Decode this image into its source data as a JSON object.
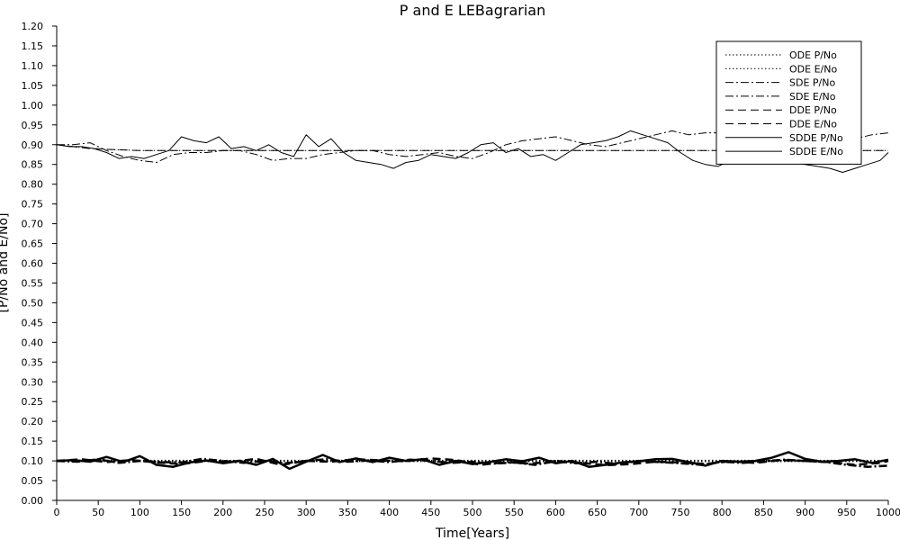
{
  "chart_data": {
    "type": "line",
    "title": "P and E LEBagrarian",
    "xlabel": "Time[Years]",
    "ylabel": "[P/No and E/No]",
    "xlim": [
      0,
      1000
    ],
    "ylim": [
      0,
      1.2
    ],
    "xticks": [
      "0",
      "50",
      "100",
      "150",
      "200",
      "250",
      "300",
      "350",
      "400",
      "450",
      "500",
      "550",
      "600",
      "650",
      "700",
      "750",
      "800",
      "850",
      "900",
      "950",
      "1000"
    ],
    "yticks": [
      "0.00",
      "0.05",
      "0.10",
      "0.15",
      "0.20",
      "0.25",
      "0.30",
      "0.35",
      "0.40",
      "0.45",
      "0.50",
      "0.55",
      "0.60",
      "0.65",
      "0.70",
      "0.75",
      "0.80",
      "0.85",
      "0.90",
      "0.95",
      "1.00",
      "1.05",
      "1.10",
      "1.15",
      "1.20"
    ],
    "grid": false,
    "legend_position": "top-right",
    "legend": [
      "ODE P/No",
      "ODE E/No",
      "SDE P/No",
      "SDE E/No",
      "DDE P/No",
      "DDE E/No",
      "SDDE P/No",
      "SDDE E/No"
    ],
    "series": [
      {
        "name": "ODE P/No",
        "style": "dotted",
        "width": 1,
        "x": [
          0,
          30,
          60,
          100,
          1000
        ],
        "y": [
          0.9,
          0.893,
          0.888,
          0.885,
          0.885
        ]
      },
      {
        "name": "ODE E/No",
        "style": "dotted",
        "width": 2.5,
        "x": [
          0,
          20,
          50,
          100,
          1000
        ],
        "y": [
          0.1,
          0.1,
          0.1,
          0.1,
          0.1
        ]
      },
      {
        "name": "SDE P/No",
        "style": "dashdot",
        "width": 1,
        "x": [
          0,
          20,
          40,
          60,
          80,
          100,
          120,
          140,
          160,
          180,
          200,
          220,
          240,
          260,
          280,
          300,
          320,
          340,
          360,
          380,
          400,
          420,
          440,
          460,
          480,
          500,
          520,
          540,
          560,
          580,
          600,
          620,
          640,
          660,
          680,
          700,
          720,
          740,
          760,
          780,
          800,
          820,
          840,
          860,
          880,
          900,
          920,
          940,
          960,
          980,
          1000
        ],
        "y": [
          0.9,
          0.9,
          0.905,
          0.885,
          0.87,
          0.86,
          0.855,
          0.875,
          0.88,
          0.88,
          0.885,
          0.885,
          0.875,
          0.86,
          0.865,
          0.865,
          0.875,
          0.88,
          0.885,
          0.885,
          0.875,
          0.87,
          0.875,
          0.88,
          0.87,
          0.865,
          0.88,
          0.9,
          0.91,
          0.915,
          0.92,
          0.91,
          0.9,
          0.895,
          0.905,
          0.915,
          0.925,
          0.935,
          0.925,
          0.93,
          0.93,
          0.92,
          0.915,
          0.92,
          0.91,
          0.905,
          0.905,
          0.91,
          0.915,
          0.925,
          0.93
        ]
      },
      {
        "name": "SDE E/No",
        "style": "dashdot",
        "width": 2.5,
        "x": [
          0,
          25,
          50,
          75,
          100,
          125,
          150,
          175,
          200,
          225,
          250,
          275,
          300,
          325,
          350,
          375,
          400,
          425,
          450,
          475,
          500,
          525,
          550,
          575,
          600,
          625,
          650,
          675,
          700,
          725,
          750,
          775,
          800,
          825,
          850,
          875,
          900,
          925,
          950,
          975,
          1000
        ],
        "y": [
          0.1,
          0.098,
          0.104,
          0.095,
          0.1,
          0.097,
          0.096,
          0.105,
          0.1,
          0.095,
          0.1,
          0.094,
          0.1,
          0.104,
          0.098,
          0.101,
          0.097,
          0.103,
          0.1,
          0.095,
          0.098,
          0.093,
          0.096,
          0.09,
          0.099,
          0.094,
          0.098,
          0.092,
          0.1,
          0.097,
          0.094,
          0.09,
          0.098,
          0.095,
          0.099,
          0.103,
          0.1,
          0.097,
          0.09,
          0.085,
          0.088
        ]
      },
      {
        "name": "DDE P/No",
        "style": "dashed",
        "width": 1,
        "x": [
          0,
          40,
          100,
          1000
        ],
        "y": [
          0.9,
          0.89,
          0.885,
          0.885
        ]
      },
      {
        "name": "DDE E/No",
        "style": "dashed",
        "width": 2.5,
        "x": [
          0,
          30,
          60,
          90,
          120,
          150,
          180,
          210,
          240,
          270,
          300,
          330,
          360,
          390,
          420,
          450,
          480,
          510,
          540,
          570,
          600,
          630,
          660,
          690,
          720,
          750,
          780,
          810,
          840,
          870,
          900,
          930,
          960,
          990,
          1000
        ],
        "y": [
          0.1,
          0.104,
          0.097,
          0.102,
          0.096,
          0.092,
          0.1,
          0.098,
          0.105,
          0.09,
          0.1,
          0.098,
          0.104,
          0.101,
          0.099,
          0.106,
          0.102,
          0.09,
          0.097,
          0.093,
          0.1,
          0.095,
          0.089,
          0.092,
          0.098,
          0.096,
          0.092,
          0.099,
          0.095,
          0.102,
          0.1,
          0.097,
          0.09,
          0.095,
          0.1
        ]
      },
      {
        "name": "SDDE P/No",
        "style": "solid",
        "width": 1,
        "x": [
          0,
          15,
          30,
          45,
          60,
          75,
          90,
          105,
          120,
          135,
          150,
          165,
          180,
          195,
          210,
          225,
          240,
          255,
          270,
          285,
          300,
          315,
          330,
          345,
          360,
          375,
          390,
          405,
          420,
          435,
          450,
          465,
          480,
          495,
          510,
          525,
          540,
          555,
          570,
          585,
          600,
          615,
          630,
          645,
          660,
          675,
          690,
          705,
          720,
          735,
          750,
          765,
          780,
          795,
          810,
          825,
          840,
          855,
          870,
          885,
          900,
          915,
          930,
          945,
          960,
          975,
          990,
          1000
        ],
        "y": [
          0.9,
          0.895,
          0.895,
          0.89,
          0.88,
          0.865,
          0.87,
          0.865,
          0.875,
          0.885,
          0.92,
          0.91,
          0.905,
          0.92,
          0.89,
          0.895,
          0.885,
          0.9,
          0.88,
          0.87,
          0.925,
          0.895,
          0.915,
          0.88,
          0.86,
          0.855,
          0.85,
          0.84,
          0.855,
          0.86,
          0.875,
          0.87,
          0.865,
          0.88,
          0.9,
          0.905,
          0.88,
          0.89,
          0.87,
          0.875,
          0.86,
          0.88,
          0.9,
          0.905,
          0.91,
          0.92,
          0.935,
          0.925,
          0.915,
          0.905,
          0.88,
          0.86,
          0.85,
          0.845,
          0.86,
          0.875,
          0.87,
          0.86,
          0.86,
          0.855,
          0.85,
          0.845,
          0.84,
          0.83,
          0.84,
          0.85,
          0.86,
          0.88
        ]
      },
      {
        "name": "SDDE E/No",
        "style": "solid",
        "width": 2.5,
        "x": [
          0,
          20,
          40,
          60,
          80,
          100,
          120,
          140,
          160,
          180,
          200,
          220,
          240,
          260,
          280,
          300,
          320,
          340,
          360,
          380,
          400,
          420,
          440,
          460,
          480,
          500,
          520,
          540,
          560,
          580,
          600,
          620,
          640,
          660,
          680,
          700,
          720,
          740,
          760,
          780,
          800,
          820,
          840,
          860,
          880,
          900,
          920,
          940,
          960,
          980,
          1000
        ],
        "y": [
          0.1,
          0.102,
          0.098,
          0.11,
          0.097,
          0.112,
          0.09,
          0.085,
          0.096,
          0.101,
          0.094,
          0.1,
          0.09,
          0.105,
          0.08,
          0.098,
          0.115,
          0.097,
          0.106,
          0.097,
          0.108,
          0.1,
          0.104,
          0.09,
          0.1,
          0.092,
          0.097,
          0.104,
          0.099,
          0.108,
          0.094,
          0.1,
          0.085,
          0.09,
          0.096,
          0.099,
          0.104,
          0.105,
          0.097,
          0.088,
          0.1,
          0.098,
          0.1,
          0.108,
          0.122,
          0.105,
          0.098,
          0.1,
          0.104,
          0.095,
          0.103
        ]
      }
    ]
  }
}
